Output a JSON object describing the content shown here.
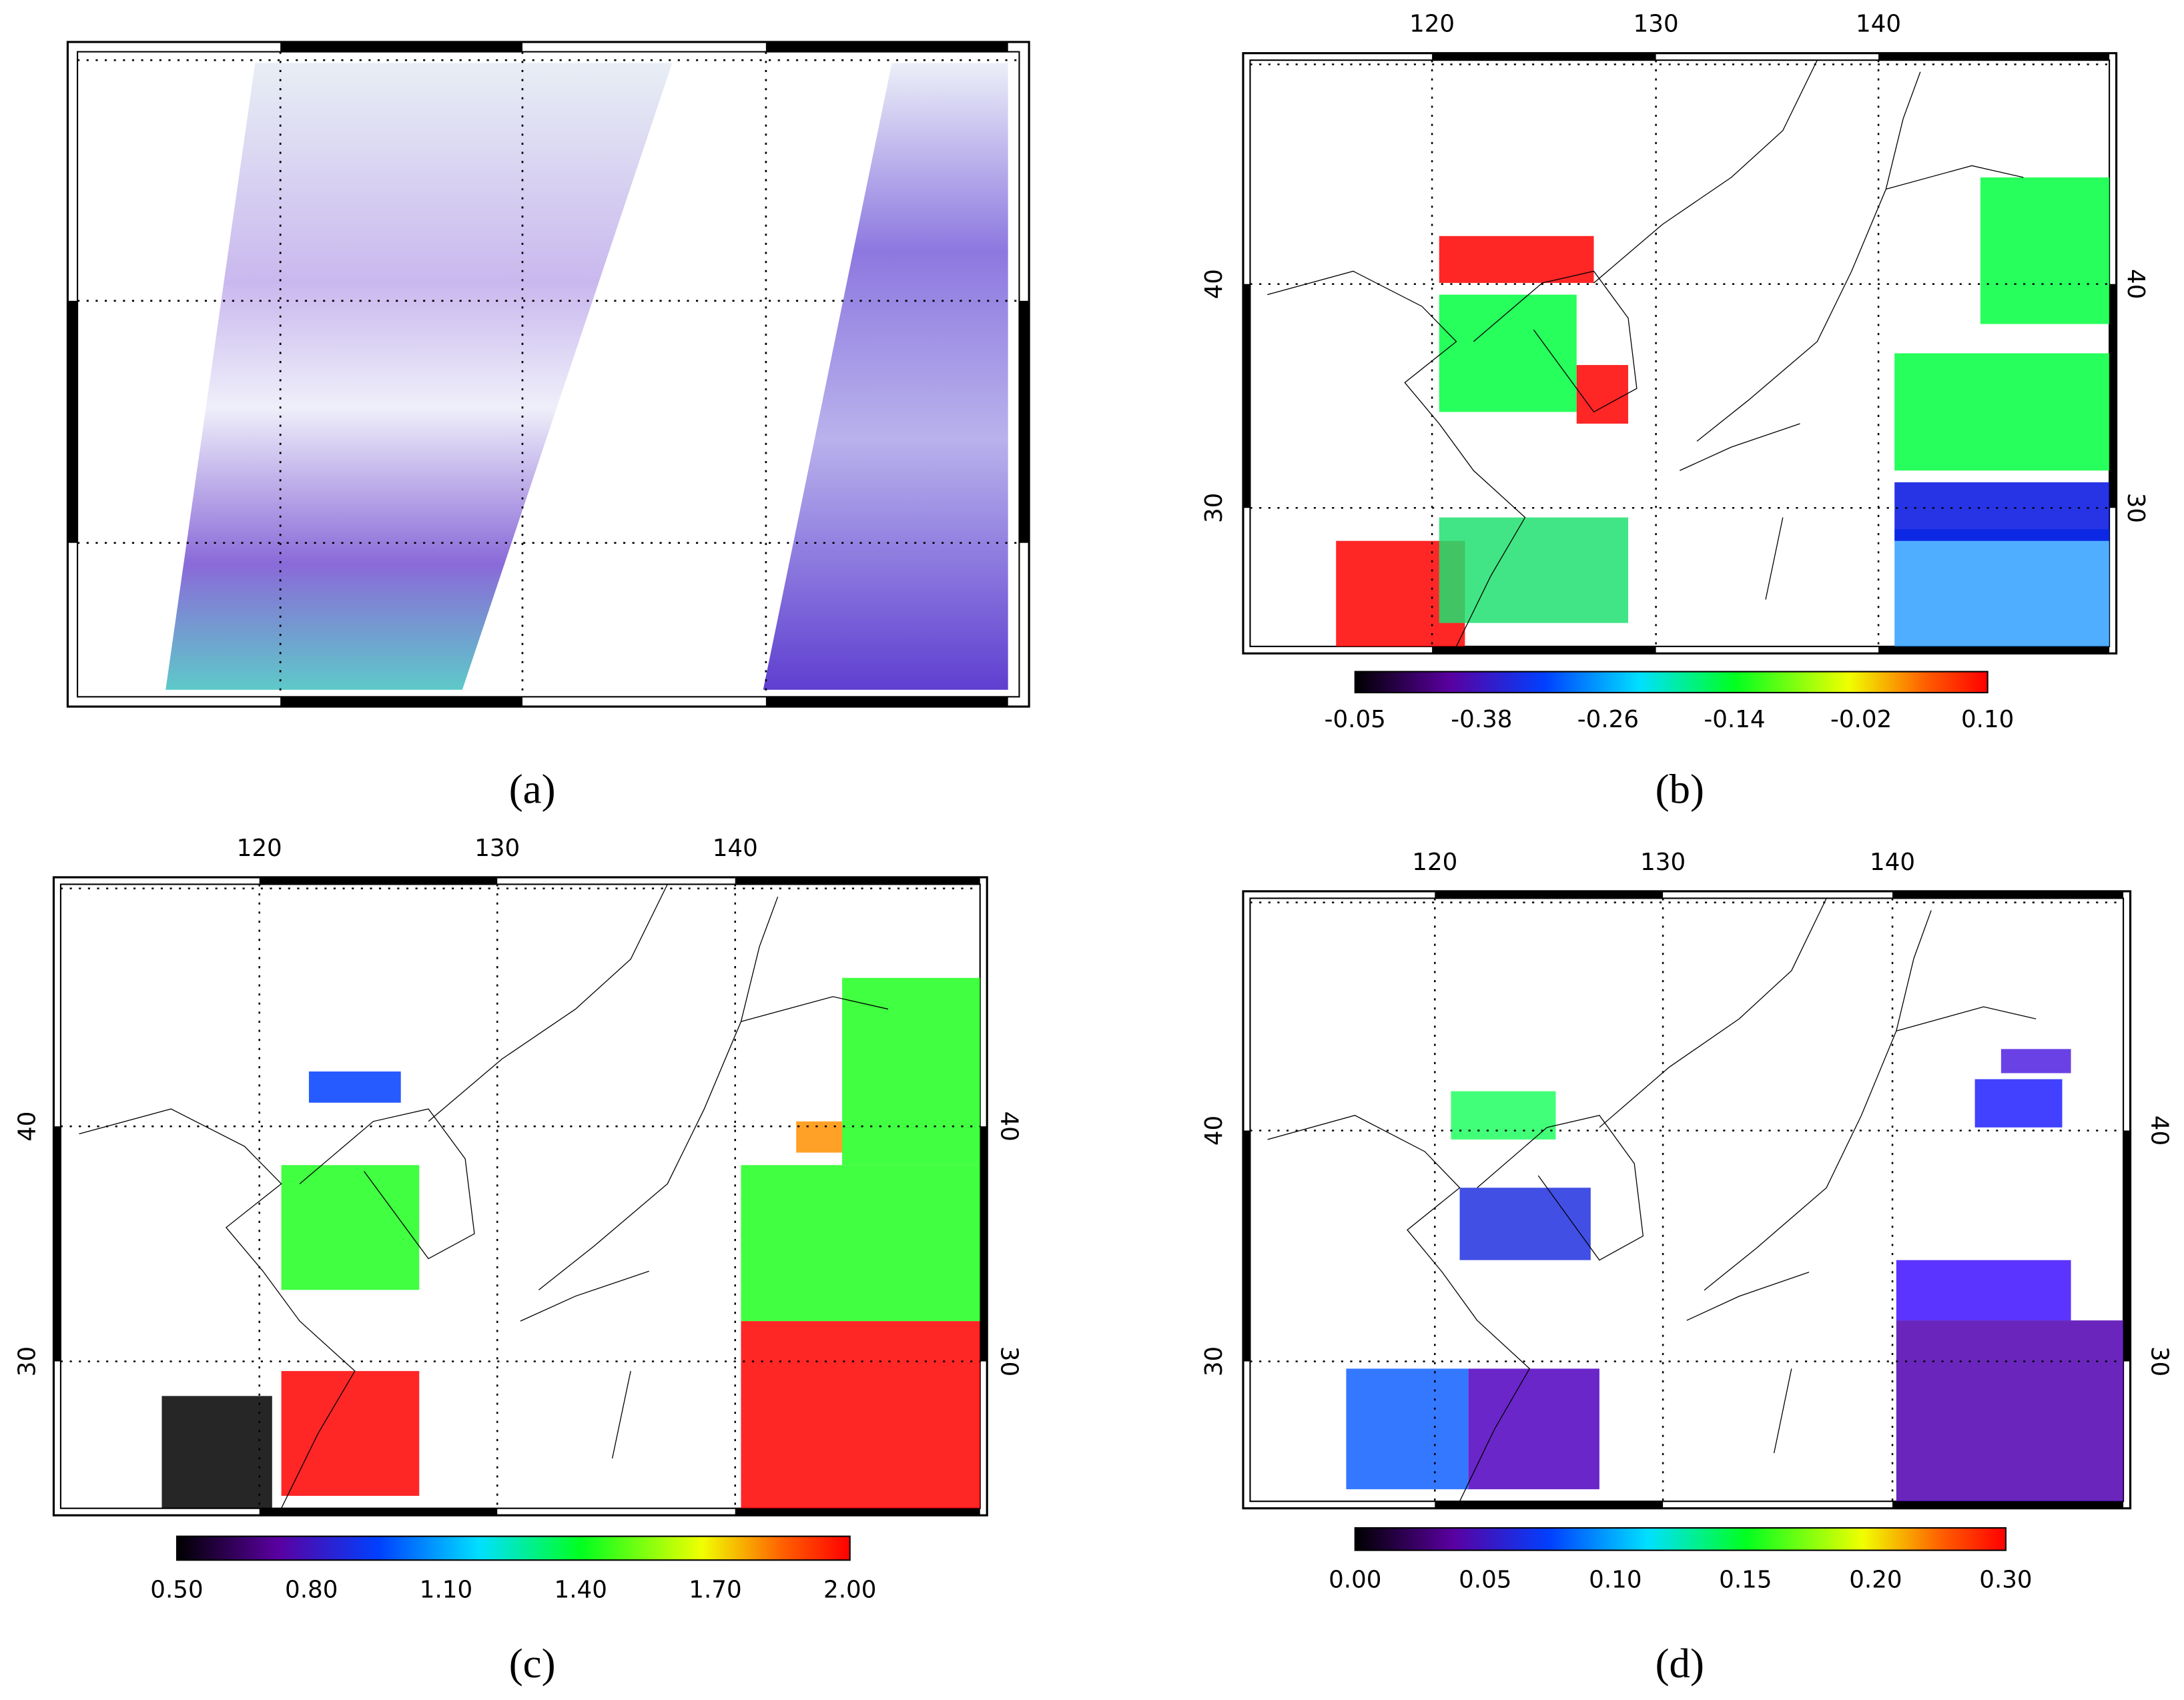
{
  "panels": [
    {
      "label": "(a)"
    },
    {
      "label": "(b)",
      "lon_ticks": [
        120,
        130,
        140
      ],
      "lat_ticks": [
        40,
        30
      ],
      "colorbar": [
        "-0.05",
        "-0.38",
        "-0.26",
        "-0.14",
        "-0.02",
        "0.10"
      ]
    },
    {
      "label": "(c)",
      "lon_ticks": [
        120,
        130,
        140
      ],
      "lat_ticks": [
        40,
        30
      ],
      "colorbar": [
        "0.50",
        "0.80",
        "1.10",
        "1.40",
        "1.70",
        "2.00"
      ]
    },
    {
      "label": "(d)",
      "lon_ticks": [
        120,
        130,
        140
      ],
      "lat_ticks": [
        40,
        30
      ],
      "colorbar": [
        "0.00",
        "0.05",
        "0.10",
        "0.15",
        "0.20",
        "0.30"
      ]
    }
  ]
}
